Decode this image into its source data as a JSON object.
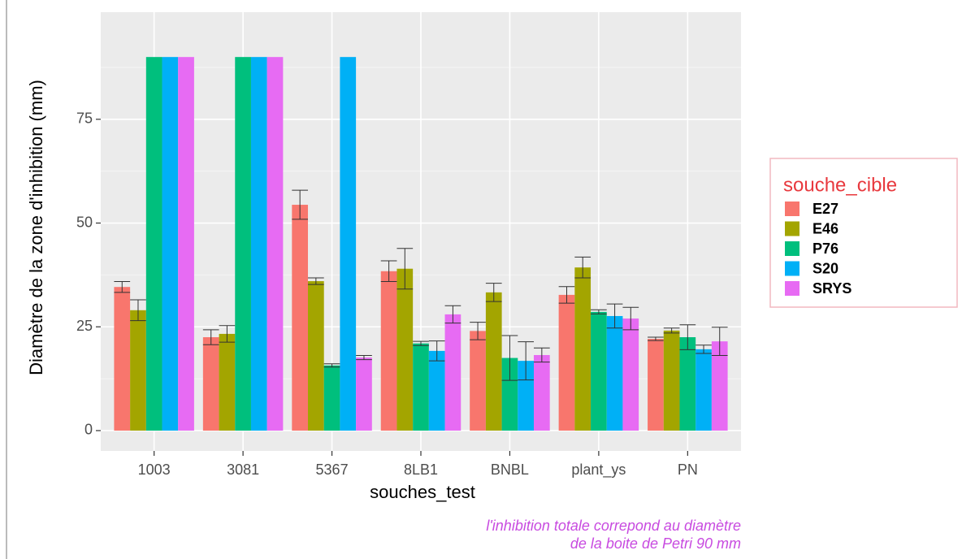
{
  "chart_data": {
    "type": "bar",
    "x_label": "souches_test",
    "y_label": "Diamètre de la zone d'inhibition (mm)",
    "legend_title": "souche_cible",
    "legend_position": "right",
    "annotation": [
      "l'inhibition totale correpond au diamètre",
      "de la boite de Petri 90 mm"
    ],
    "categories": [
      "1003",
      "3081",
      "5367",
      "8LB1",
      "BNBL",
      "plant_ys",
      "PN"
    ],
    "series": [
      {
        "name": "E27",
        "color": "#F8766D",
        "values": [
          34.6,
          22.5,
          54.4,
          38.4,
          24,
          32.7,
          22.1
        ],
        "errors": [
          1.3,
          1.8,
          3.5,
          2.5,
          2.1,
          2,
          0.4
        ]
      },
      {
        "name": "E46",
        "color": "#A3A500",
        "values": [
          29,
          23.3,
          36,
          39,
          33.3,
          39.3,
          24.1
        ],
        "errors": [
          2.5,
          2,
          0.8,
          4.9,
          2.2,
          2.5,
          0.6
        ]
      },
      {
        "name": "P76",
        "color": "#00BF7D",
        "values": [
          90,
          90,
          15.7,
          21,
          17.5,
          28.6,
          22.5
        ],
        "errors": [
          0,
          0,
          0.4,
          0.5,
          5.4,
          0.5,
          3
        ]
      },
      {
        "name": "S20",
        "color": "#00B0F6",
        "values": [
          90,
          90,
          90,
          19.2,
          16.8,
          27.6,
          19.6
        ],
        "errors": [
          0,
          0,
          0,
          2.4,
          4.6,
          2.9,
          1
        ]
      },
      {
        "name": "SRYS",
        "color": "#E76BF3",
        "values": [
          90,
          90,
          17.6,
          28,
          18.2,
          27,
          21.5
        ],
        "errors": [
          0,
          0,
          0.5,
          2.1,
          1.7,
          2.7,
          3.4
        ]
      }
    ],
    "ylim": [
      -4.9,
      100.8
    ],
    "yticks": [
      0,
      25,
      50,
      75
    ],
    "grid": true
  }
}
